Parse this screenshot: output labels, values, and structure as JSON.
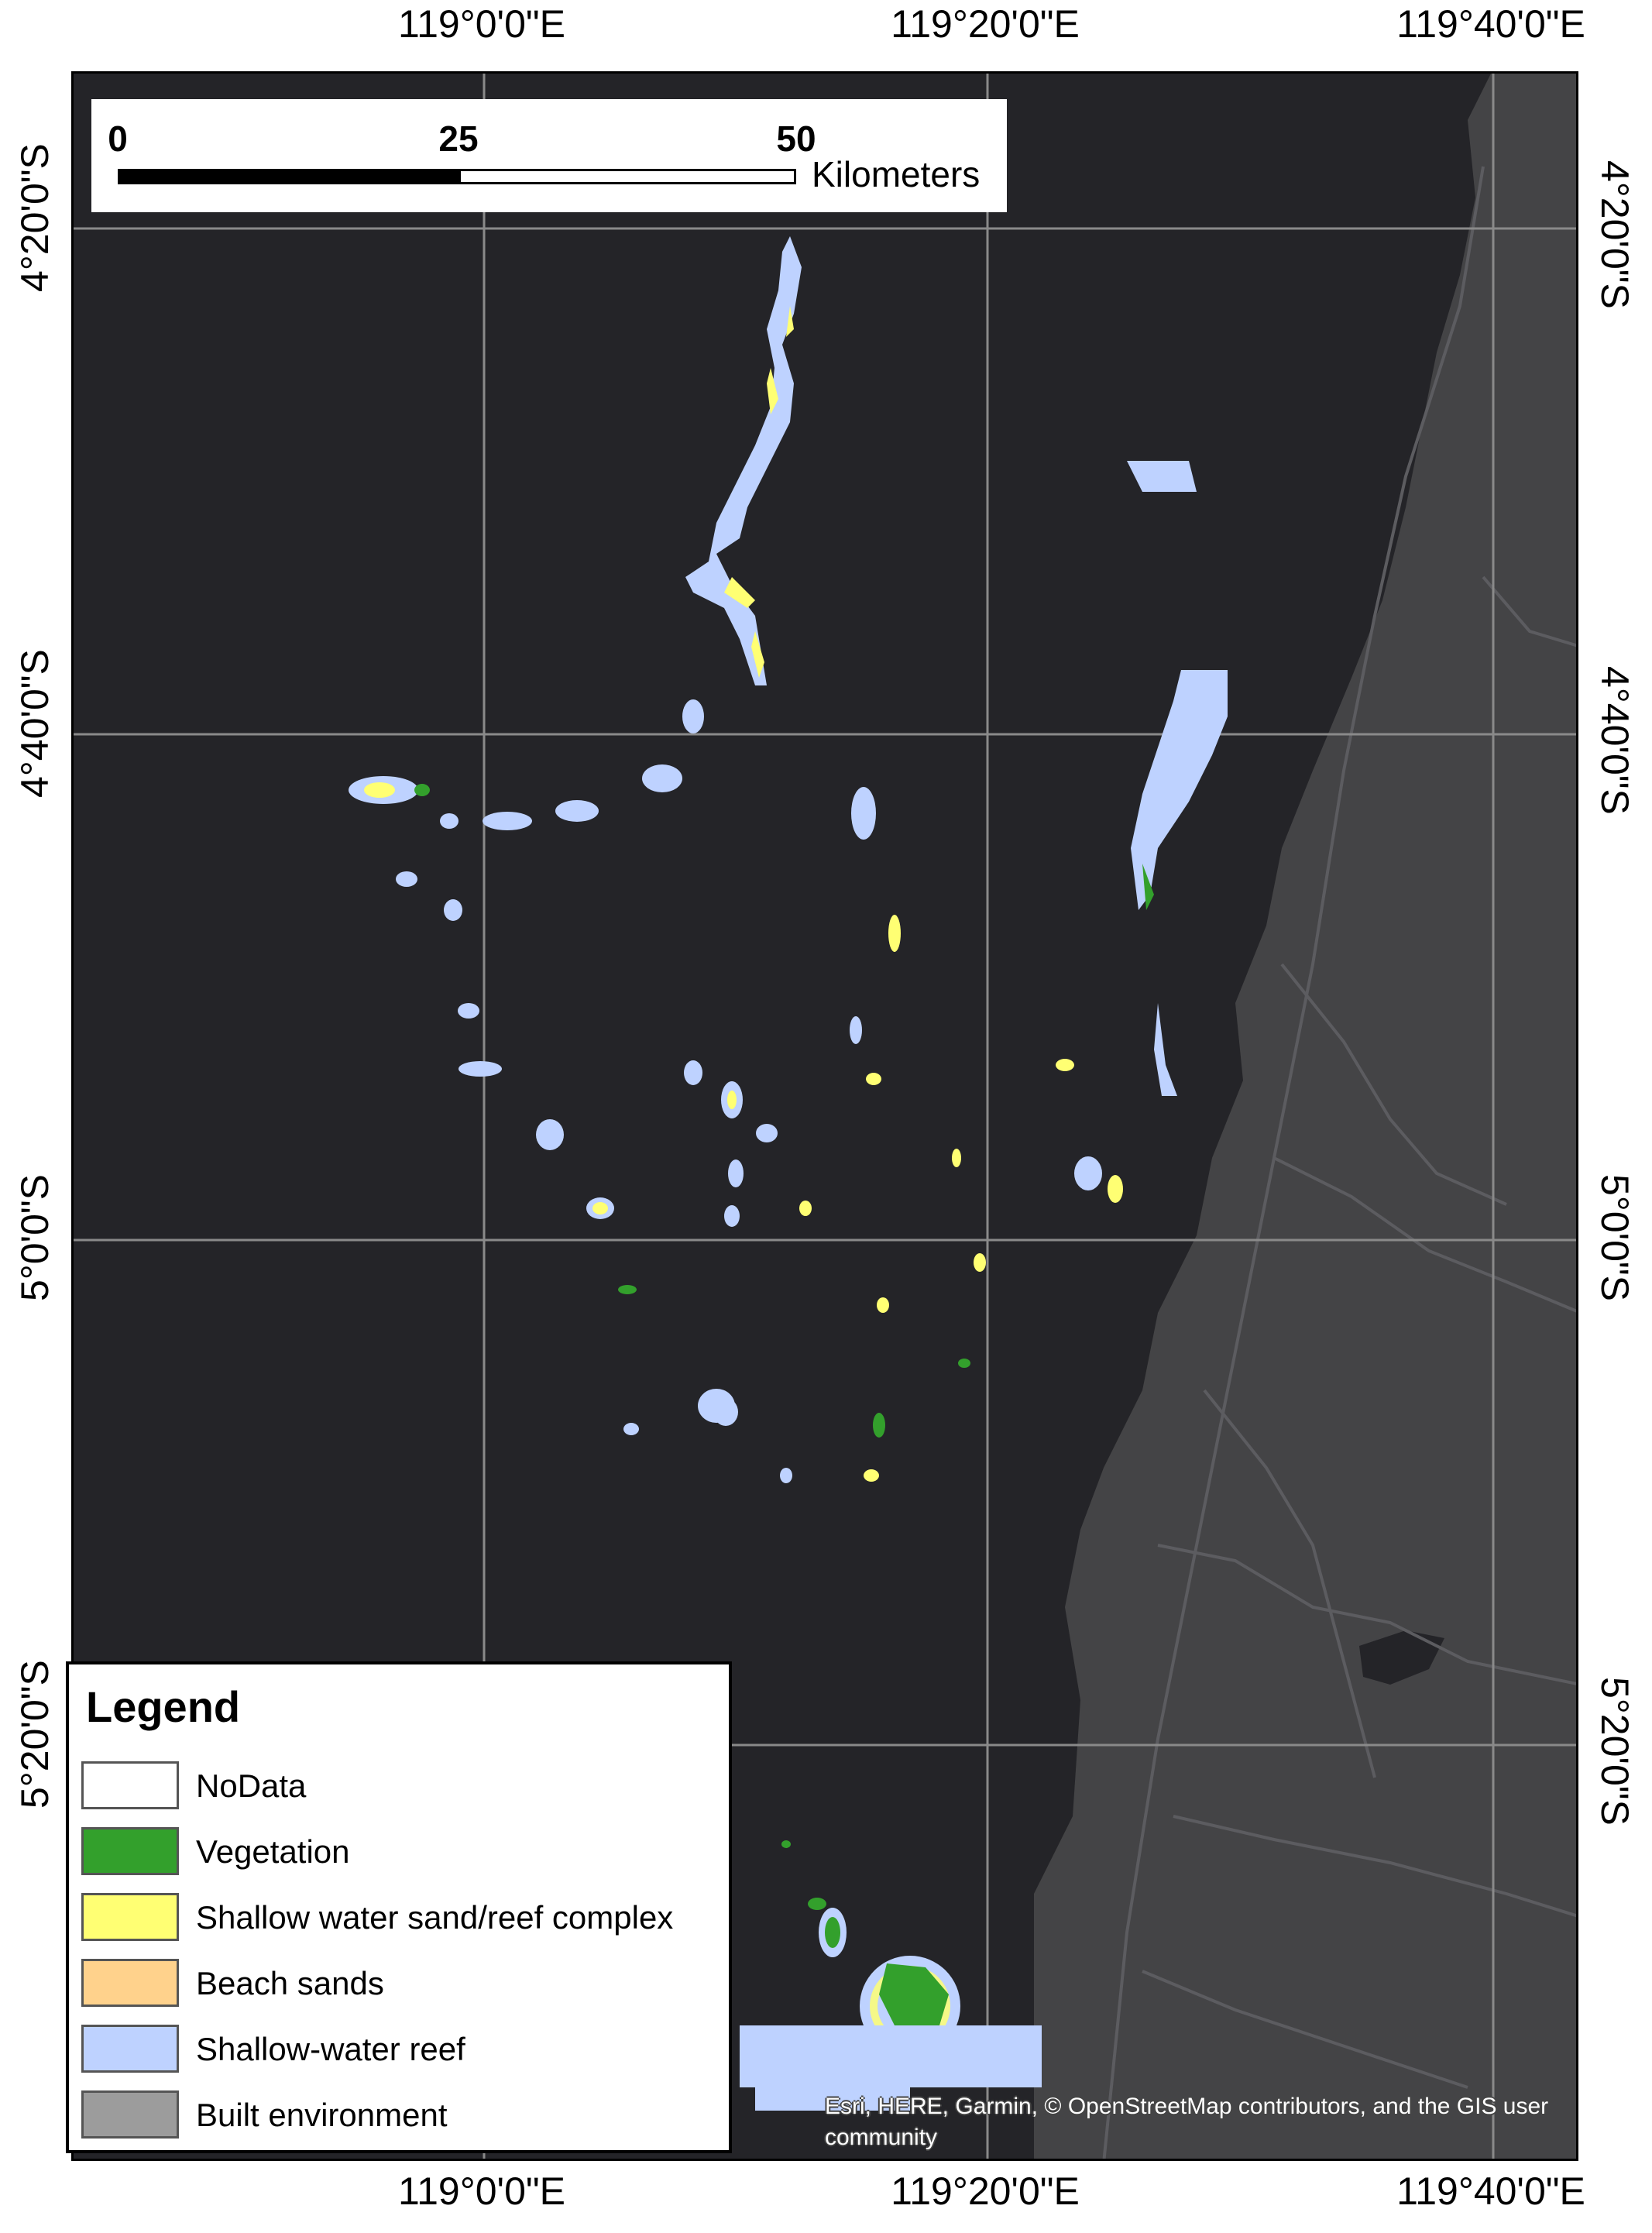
{
  "coordinates": {
    "top": [
      "119°0'0\"E",
      "119°20'0\"E",
      "119°40'0\"E"
    ],
    "bottom": [
      "119°0'0\"E",
      "119°20'0\"E",
      "119°40'0\"E"
    ],
    "left": [
      "4°20'0\"S",
      "4°40'0\"S",
      "5°0'0\"S",
      "5°20'0\"S"
    ],
    "right": [
      "4°20'0\"S",
      "4°40'0\"S",
      "5°0'0\"S",
      "5°20'0\"S"
    ]
  },
  "scale_bar": {
    "ticks": [
      "0",
      "25",
      "50"
    ],
    "unit": "Kilometers"
  },
  "legend": {
    "title": "Legend",
    "items": [
      {
        "label": "NoData",
        "color": "#ffffff"
      },
      {
        "label": "Vegetation",
        "color": "#33a02c"
      },
      {
        "label": "Shallow water sand/reef complex",
        "color": "#ffff73"
      },
      {
        "label": "Beach sands",
        "color": "#ffd28c"
      },
      {
        "label": "Shallow-water reef",
        "color": "#bed2ff"
      },
      {
        "label": "Built environment",
        "color": "#9c9c9c"
      }
    ]
  },
  "attribution": "Esri, HERE, Garmin, © OpenStreetMap contributors, and the GIS user community",
  "colors": {
    "ocean": "#242428",
    "land": "#444446",
    "graticule": "#8a8a8a",
    "roads": "#5c5c60"
  }
}
